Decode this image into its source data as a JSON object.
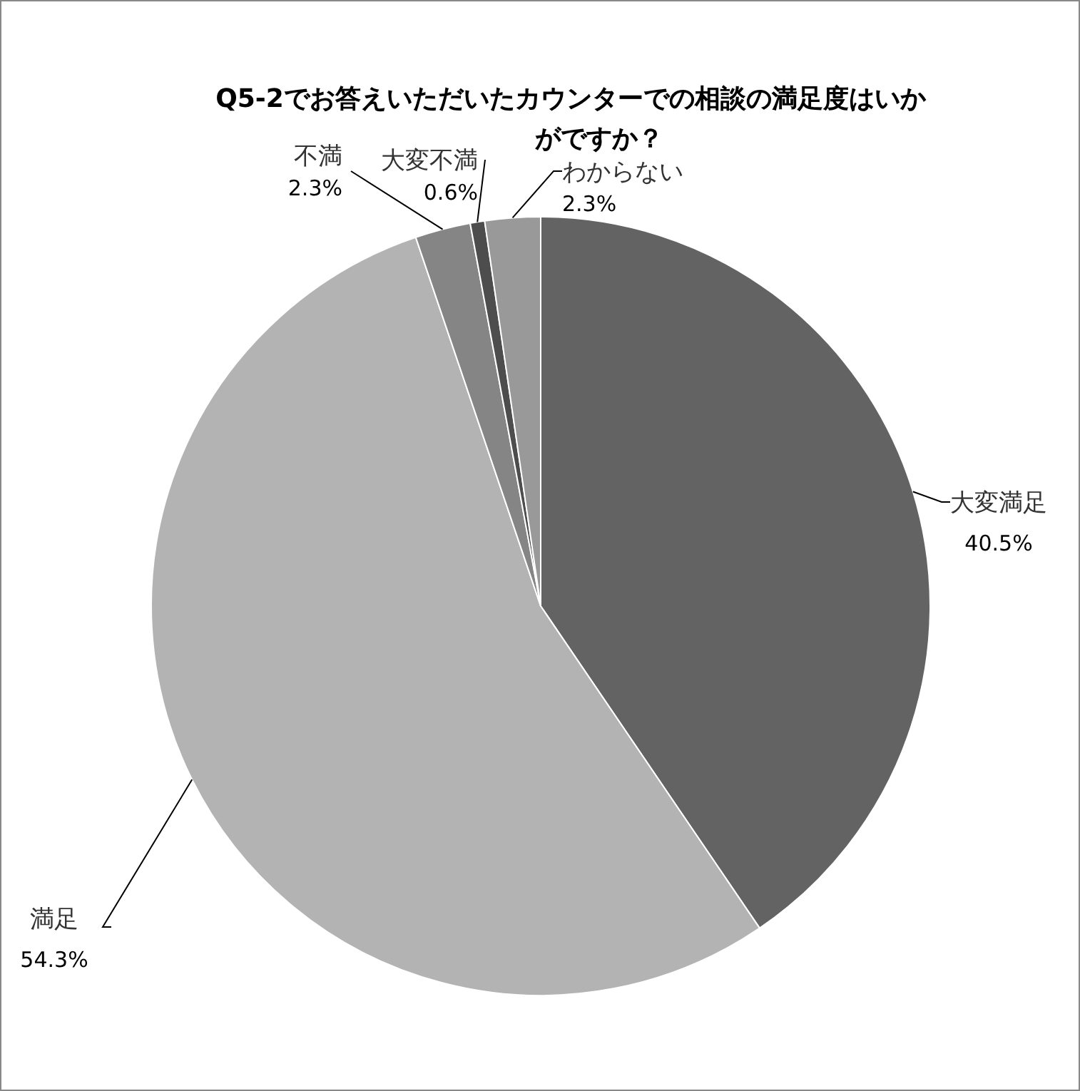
{
  "chart_data": {
    "type": "pie",
    "title": "Q5-2でお答えいただいたカウンターでの相談の満足度はいかがですか？",
    "categories": [
      "大変満足",
      "満足",
      "不満",
      "大変不満",
      "わからない"
    ],
    "values": [
      40.5,
      54.3,
      2.3,
      0.6,
      2.3
    ],
    "colors": [
      "#636363",
      "#b3b3b3",
      "#858585",
      "#4d4d4d",
      "#999999"
    ],
    "value_labels": [
      "40.5%",
      "54.3%",
      "2.3%",
      "0.6%",
      "2.3%"
    ]
  }
}
